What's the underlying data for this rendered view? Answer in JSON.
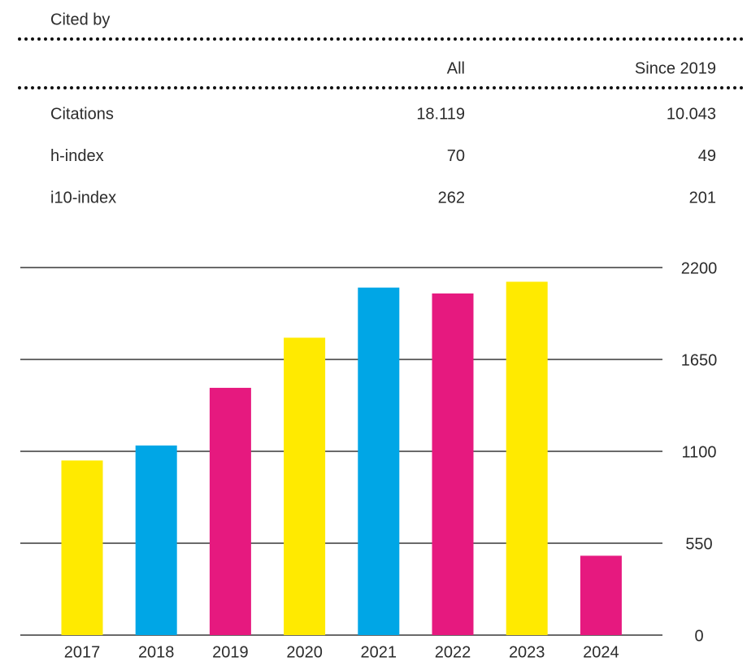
{
  "header": {
    "title": "Cited by"
  },
  "table": {
    "columns": [
      "All",
      "Since 2019"
    ],
    "rows": [
      [
        "Citations",
        "18.119",
        "10.043"
      ],
      [
        "h-index",
        "70",
        "49"
      ],
      [
        "i10-index",
        "262",
        "201"
      ]
    ]
  },
  "chart_data": {
    "type": "bar",
    "categories": [
      "2017",
      "2018",
      "2019",
      "2020",
      "2021",
      "2022",
      "2023",
      "2024"
    ],
    "values": [
      1045,
      1135,
      1480,
      1780,
      2080,
      2045,
      2115,
      475
    ],
    "colors": [
      "#ffea00",
      "#00a6e6",
      "#e6197f",
      "#ffea00",
      "#00a6e6",
      "#e6197f",
      "#ffea00",
      "#e6197f"
    ],
    "ylim": [
      0,
      2200
    ],
    "yticks": [
      0,
      550,
      1100,
      1650,
      2200
    ],
    "grid": true
  }
}
